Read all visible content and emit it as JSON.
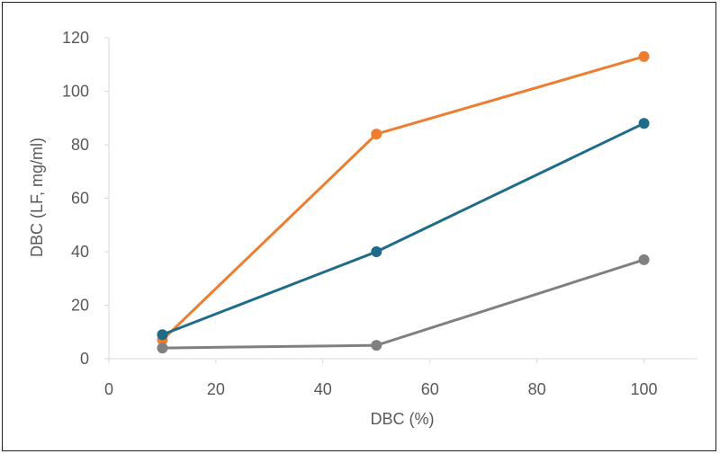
{
  "chart_data": {
    "type": "line",
    "title": "",
    "xlabel": "DBC (%)",
    "ylabel": "DBC (LF, mg/ml)",
    "xlim": [
      0,
      110
    ],
    "ylim": [
      0,
      120
    ],
    "xticks": [
      0,
      20,
      40,
      60,
      80,
      100
    ],
    "yticks": [
      0,
      20,
      40,
      60,
      80,
      100,
      120
    ],
    "grid": false,
    "legend": "none",
    "x": [
      10,
      50,
      100
    ],
    "series": [
      {
        "color": "#ED7D31",
        "values": [
          7,
          84,
          113
        ]
      },
      {
        "color": "#1F6B8A",
        "values": [
          9,
          40,
          88
        ]
      },
      {
        "color": "#808080",
        "values": [
          4,
          5,
          37
        ]
      }
    ]
  }
}
